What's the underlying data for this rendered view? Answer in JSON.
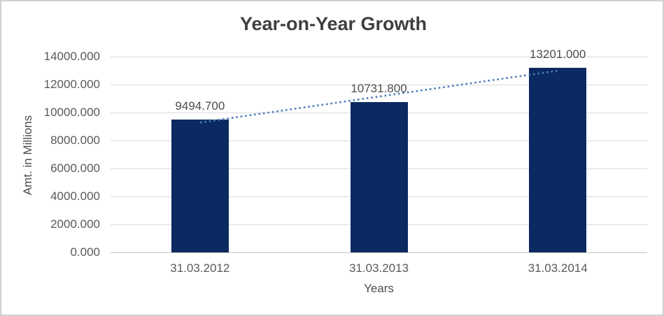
{
  "chart_data": {
    "type": "bar",
    "title": "Year-on-Year Growth",
    "xlabel": "Years",
    "ylabel": "Amt. in Millions",
    "categories": [
      "31.03.2012",
      "31.03.2013",
      "31.03.2014"
    ],
    "values": [
      9494.7,
      10731.8,
      13201.0
    ],
    "data_labels": [
      "9494.700",
      "10731.800",
      "13201.000"
    ],
    "ylim": [
      0,
      14000
    ],
    "ytick_step": 2000,
    "ytick_labels": [
      "0.000",
      "2000.000",
      "4000.000",
      "6000.000",
      "8000.000",
      "10000.000",
      "12000.000",
      "14000.000"
    ],
    "grid": true,
    "legend": "none",
    "trendline": {
      "type": "linear",
      "style": "dotted"
    },
    "colors": {
      "bar": "#0b2a61",
      "trendline": "#4a7ebb",
      "gridline": "#d9d9d9",
      "axis_line": "#c3c3c3",
      "title_text": "#3f3f3f",
      "tick_text": "#595959",
      "axis_title_text": "#4d4d4d",
      "data_label_text": "#4d4d4d",
      "background": "#ffffff",
      "frame_border": "#ccd0d4"
    }
  }
}
